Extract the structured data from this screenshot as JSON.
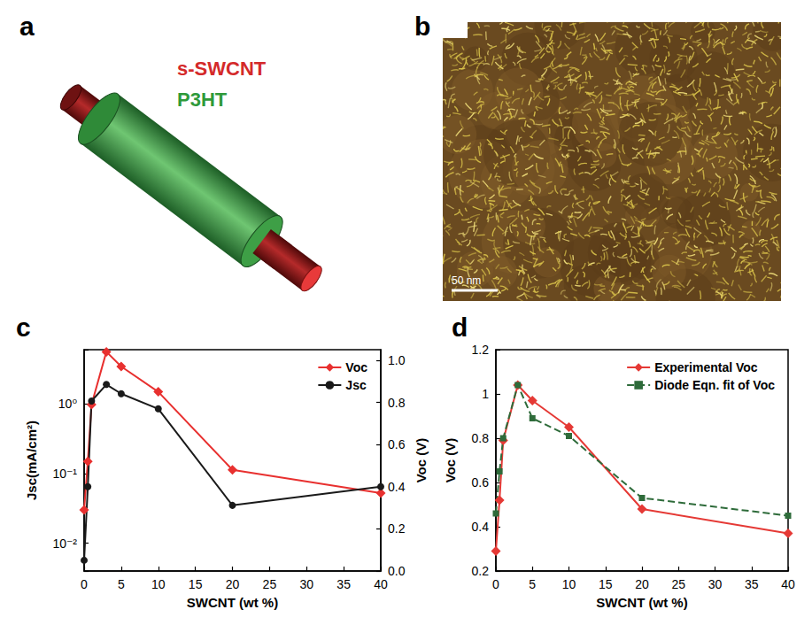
{
  "chart_data": [
    {
      "panel": "c",
      "type": "line",
      "x_label": "SWCNT (wt %)",
      "y_label": "Jsc(mA/cm²)",
      "y2_label": "Voc (V)",
      "xlim": [
        0,
        40
      ],
      "xticks": [
        0,
        5,
        10,
        15,
        20,
        25,
        30,
        35,
        40
      ],
      "ylim": [
        0.004,
        6
      ],
      "yticks": [
        {
          "value": 0.01,
          "label": "10⁻²"
        },
        {
          "value": 0.1,
          "label": "10⁻¹"
        },
        {
          "value": 1,
          "label": "10⁰"
        }
      ],
      "y2lim": [
        0,
        1.05
      ],
      "y2ticks": [
        {
          "value": 0,
          "label": "0.0"
        },
        {
          "value": 0.2,
          "label": "0.2"
        },
        {
          "value": 0.4,
          "label": "0.4"
        },
        {
          "value": 0.6,
          "label": "0.6"
        },
        {
          "value": 0.8,
          "label": "0.8"
        },
        {
          "value": 1,
          "label": "1.0"
        }
      ],
      "log": "y",
      "grid": false,
      "legend": "top-right",
      "series": [
        {
          "name": "Voc",
          "color": "#e8302f",
          "marker": "diamond",
          "line_style": "solid",
          "axis": "y2",
          "x": [
            0,
            0.5,
            1,
            3,
            5,
            10,
            20,
            40
          ],
          "values": [
            0.29,
            0.52,
            0.79,
            1.04,
            0.97,
            0.85,
            0.48,
            0.37
          ]
        },
        {
          "name": "Jsc",
          "color": "#1a1a1a",
          "marker": "circle",
          "line_style": "solid",
          "x": [
            0,
            0.5,
            1,
            3,
            5,
            10,
            20,
            40
          ],
          "values": [
            0.0057,
            0.065,
            1.1,
            1.9,
            1.4,
            0.85,
            0.035,
            0.065
          ]
        }
      ]
    },
    {
      "panel": "d",
      "type": "line",
      "x_label": "SWCNT (wt %)",
      "y_label": "Voc (V)",
      "xlim": [
        0,
        40
      ],
      "xticks": [
        0,
        5,
        10,
        15,
        20,
        25,
        30,
        35,
        40
      ],
      "ylim": [
        0.2,
        1.2
      ],
      "yticks": [
        0.2,
        0.4,
        0.6,
        0.8,
        1,
        1.2
      ],
      "grid": false,
      "legend": "top-right",
      "series": [
        {
          "name": "Experimental Voc",
          "color": "#e53935",
          "marker": "diamond",
          "line_style": "solid",
          "x": [
            0,
            0.5,
            1,
            3,
            5,
            10,
            20,
            40
          ],
          "values": [
            0.29,
            0.52,
            0.79,
            1.04,
            0.97,
            0.85,
            0.48,
            0.37
          ]
        },
        {
          "name": "Diode Eqn. fit of Voc",
          "color": "#2e6b3a",
          "marker": "square",
          "line_style": "dashed",
          "x": [
            0,
            0.5,
            1,
            3,
            5,
            10,
            20,
            40
          ],
          "values": [
            0.46,
            0.65,
            0.8,
            1.04,
            0.89,
            0.81,
            0.53,
            0.45
          ]
        }
      ]
    }
  ],
  "panels": {
    "a": {
      "label": "a",
      "texts": [
        {
          "text": "s-SWCNT",
          "color": "#d42a2a"
        },
        {
          "text": "P3HT",
          "color": "#2f9a3a"
        }
      ]
    },
    "b": {
      "label": "b",
      "scale_bar": "50 nm"
    }
  }
}
